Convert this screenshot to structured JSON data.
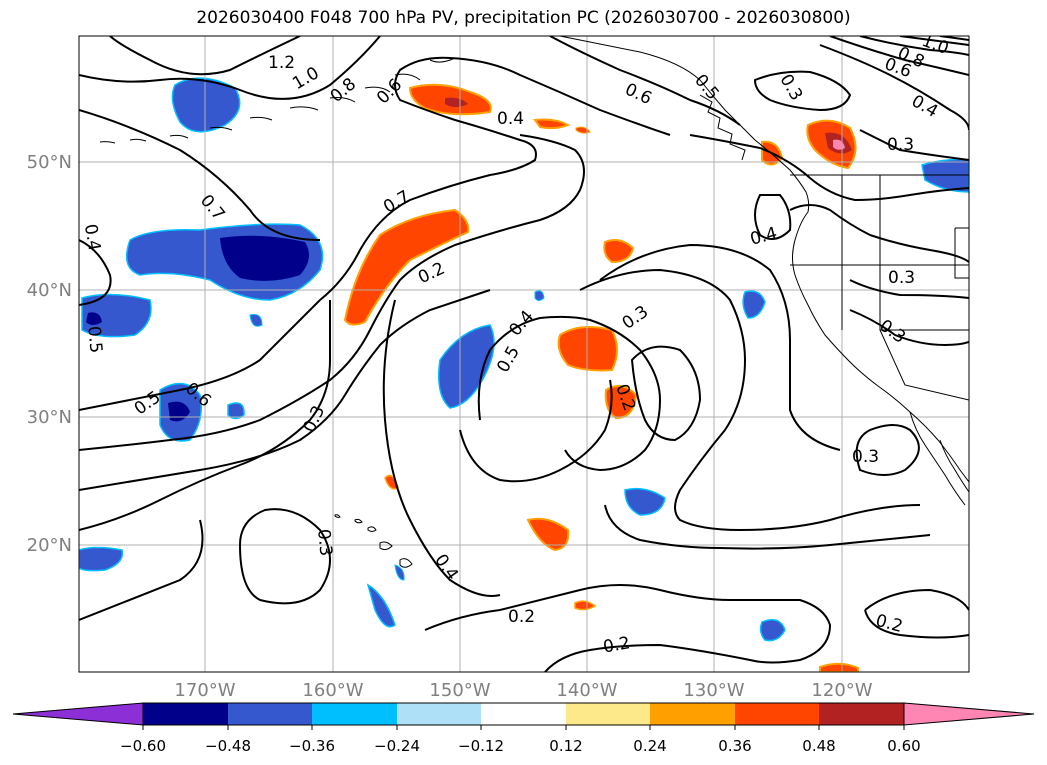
{
  "title": "2026030400 F048 700 hPa PV, precipitation PC (2026030700 - 2026030800)",
  "map": {
    "lat_labels": [
      "50°N",
      "40°N",
      "30°N",
      "20°N"
    ],
    "lon_labels": [
      "170°W",
      "160°W",
      "150°W",
      "140°W",
      "130°W",
      "120°W"
    ],
    "contour_labels": [
      "1.2",
      "1.0",
      "0.8",
      "0.6",
      "0.4",
      "0.6",
      "0.5",
      "0.3",
      "0.8",
      "0.6",
      "1.0",
      "0.4",
      "0.3",
      "0.7",
      "0.7",
      "0.4",
      "0.2",
      "0.4",
      "0.3",
      "0.4",
      "0.3",
      "0.5",
      "0.5",
      "0.6",
      "0.3",
      "0.3",
      "0.2",
      "0.3",
      "0.4",
      "0.2",
      "0.2",
      "0.2",
      "0.5",
      "0.3"
    ],
    "label_color": "#808080",
    "line_color": "#000000"
  },
  "colorbar": {
    "tick_labels": [
      "−0.60",
      "−0.48",
      "−0.36",
      "−0.24",
      "−0.12",
      "0.12",
      "0.24",
      "0.36",
      "0.48",
      "0.60"
    ],
    "colors": [
      "#8c2fd6",
      "#00008b",
      "#3558cf",
      "#00bfff",
      "#aee0f7",
      "#ffffff",
      "#fde98a",
      "#ffa000",
      "#ff4500",
      "#b22222",
      "#ff85b3"
    ]
  }
}
